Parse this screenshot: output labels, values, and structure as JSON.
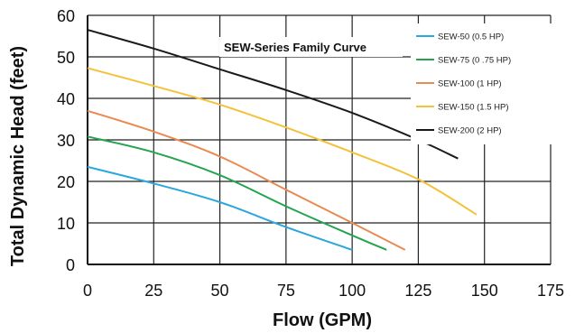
{
  "chart_data": {
    "type": "line",
    "title": "SEW-Series Family Curve",
    "xlabel": "Flow (GPM)",
    "ylabel": "Total Dynamic Head (feet)",
    "xlim": [
      0,
      175
    ],
    "ylim": [
      0,
      60
    ],
    "xticks": [
      "0",
      "25",
      "50",
      "75",
      "100",
      "125",
      "150",
      "175"
    ],
    "yticks": [
      "0",
      "10",
      "20",
      "30",
      "40",
      "50",
      "60"
    ],
    "grid": true,
    "legend_position": "top-right",
    "series": [
      {
        "name": "SEW-50 (0.5 HP)",
        "color": "#2aa7de",
        "points": [
          [
            0,
            23.5
          ],
          [
            25,
            19.5
          ],
          [
            50,
            15
          ],
          [
            75,
            9
          ],
          [
            100,
            3.5
          ]
        ]
      },
      {
        "name": "SEW-75 (0 .75 HP)",
        "color": "#23a44d",
        "points": [
          [
            0,
            30.8
          ],
          [
            25,
            27
          ],
          [
            50,
            21.5
          ],
          [
            75,
            14
          ],
          [
            100,
            7
          ],
          [
            113,
            3.5
          ]
        ]
      },
      {
        "name": "SEW-100 (1 HP)",
        "color": "#ea8a50",
        "points": [
          [
            0,
            37
          ],
          [
            25,
            32
          ],
          [
            50,
            26
          ],
          [
            75,
            18
          ],
          [
            100,
            10
          ],
          [
            120,
            3.5
          ]
        ]
      },
      {
        "name": "SEW-150 (1.5 HP)",
        "color": "#f4c23a",
        "points": [
          [
            0,
            47.3
          ],
          [
            25,
            43
          ],
          [
            50,
            38.5
          ],
          [
            75,
            33
          ],
          [
            100,
            27
          ],
          [
            125,
            20.5
          ],
          [
            147,
            12
          ]
        ]
      },
      {
        "name": "SEW-200 (2 HP)",
        "color": "#1a1a1a",
        "points": [
          [
            0,
            56.5
          ],
          [
            25,
            52
          ],
          [
            50,
            47
          ],
          [
            75,
            42
          ],
          [
            100,
            36.5
          ],
          [
            125,
            30
          ],
          [
            140,
            25.5
          ]
        ]
      }
    ]
  }
}
